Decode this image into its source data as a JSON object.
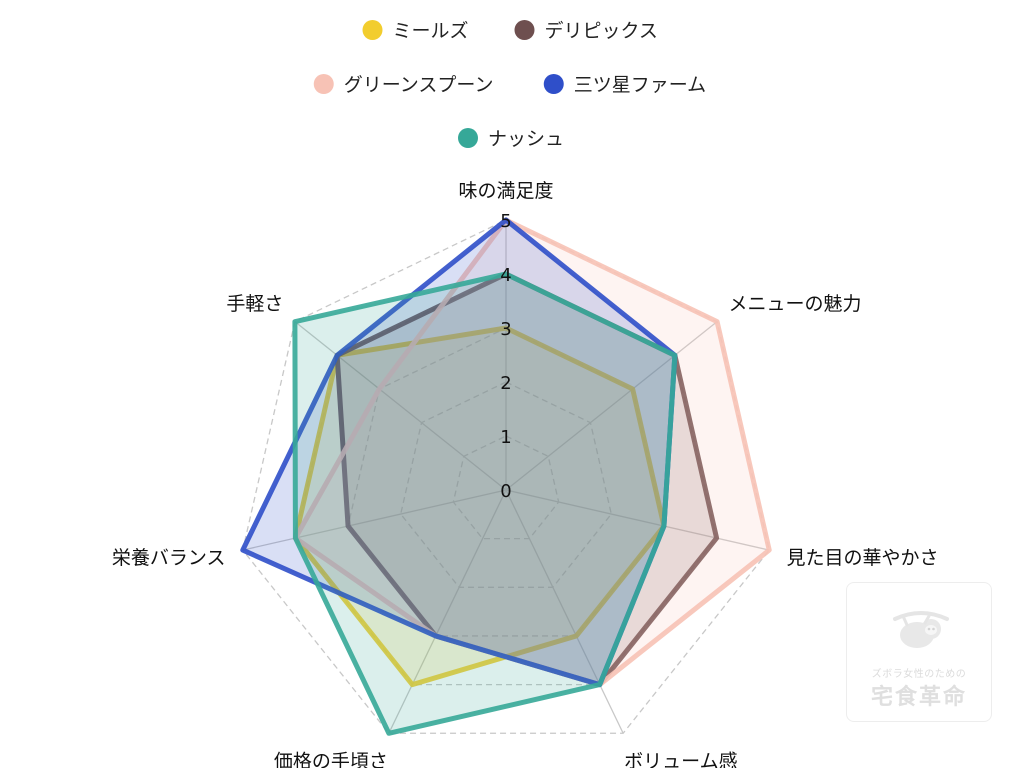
{
  "chart_data": {
    "type": "radar",
    "axes": [
      "味の満足度",
      "メニューの魅力",
      "見た目の華やかさ",
      "ボリューム感",
      "価格の手頃さ",
      "栄養バランス",
      "手軽さ"
    ],
    "r_range": [
      0,
      5
    ],
    "ticks": [
      "0",
      "1",
      "2",
      "3",
      "4",
      "5"
    ],
    "grid": "dashed",
    "legend_position": "top",
    "series": [
      {
        "name": "ミールズ",
        "color": "#f2cd2e",
        "values": [
          3,
          3,
          3,
          3,
          4,
          4,
          4
        ]
      },
      {
        "name": "デリピックス",
        "color": "#6e4f4f",
        "values": [
          4,
          4,
          4,
          4,
          3,
          3,
          4
        ]
      },
      {
        "name": "グリーンスプーン",
        "color": "#f7c2b5",
        "values": [
          5,
          5,
          5,
          4,
          3,
          4,
          3
        ]
      },
      {
        "name": "三ツ星ファーム",
        "color": "#2f4fc9",
        "values": [
          5,
          4,
          3,
          4,
          3,
          5,
          4
        ]
      },
      {
        "name": "ナッシュ",
        "color": "#36a898",
        "values": [
          4,
          4,
          3,
          4,
          5,
          4,
          5
        ]
      }
    ]
  },
  "watermark": {
    "line1": "ズボラ女性のための",
    "line2": "宅食革命",
    "icon": "sloth-icon"
  }
}
